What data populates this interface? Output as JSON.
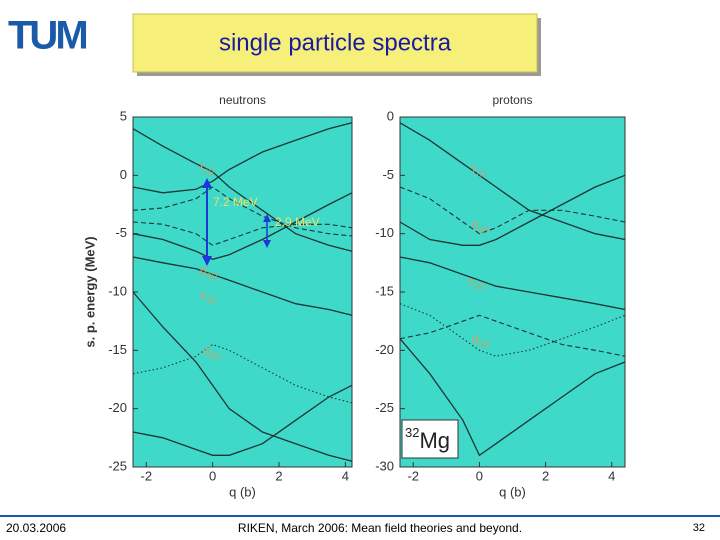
{
  "header": {
    "logo": "TUM",
    "title": "single particle spectra"
  },
  "footer": {
    "date": "20.03.2006",
    "text": "RIKEN, March 2006: Mean field theories and beyond.",
    "page": "32"
  },
  "chart_data": [
    {
      "type": "line",
      "title": "neutrons",
      "ylabel": "s. p. energy (MeV)",
      "xlabel": "q (b)",
      "xlim": [
        -2.4,
        4.2
      ],
      "xticks": [
        -2,
        0,
        2,
        4
      ],
      "ylim": [
        -25,
        5
      ],
      "yticks": [
        5,
        0,
        -5,
        -10,
        -15,
        -20,
        -25
      ],
      "background": "#3fd9c9",
      "color": "#1d3535",
      "x": [
        -2.4,
        -1.5,
        -0.5,
        0,
        0.5,
        1.5,
        2.5,
        3.5,
        4.2
      ],
      "series": [
        {
          "style": "solid",
          "values": [
            4,
            2.5,
            1,
            0.3,
            -1,
            -3,
            -5,
            -6,
            -6.5
          ]
        },
        {
          "style": "solid",
          "values": [
            -5,
            -5.5,
            -6.5,
            -7.2,
            -6.8,
            -5.5,
            -4,
            -2.5,
            -1.5
          ]
        },
        {
          "style": "solid",
          "values": [
            -1,
            -1.5,
            -1.2,
            -0.5,
            0.5,
            2,
            3,
            4,
            4.5
          ]
        },
        {
          "style": "dashed",
          "values": [
            -3,
            -2.8,
            -2,
            -1,
            -2,
            -3.5,
            -4.5,
            -5,
            -5.2
          ]
        },
        {
          "style": "dashed",
          "values": [
            -4,
            -4.2,
            -5,
            -6,
            -5.5,
            -4.5,
            -4.2,
            -4.2,
            -4.5
          ]
        },
        {
          "style": "solid",
          "values": [
            -7,
            -7.5,
            -8,
            -8.5,
            -9,
            -10,
            -11,
            -11.5,
            -12
          ]
        },
        {
          "style": "dotted",
          "values": [
            -17,
            -16.5,
            -15.5,
            -14.5,
            -15,
            -16.5,
            -18,
            -19,
            -19.5
          ]
        },
        {
          "style": "solid",
          "values": [
            -10,
            -13,
            -16,
            -18,
            -20,
            -22,
            -23,
            -24,
            -24.5
          ]
        },
        {
          "style": "solid",
          "values": [
            -22,
            -22.5,
            -23.5,
            -24,
            -24,
            -23,
            -21,
            -19,
            -18
          ]
        }
      ],
      "annotations": [
        {
          "text": "f",
          "sub": "7/2"
        },
        {
          "text": "d",
          "sub": "3/2"
        },
        {
          "text": "s",
          "sub": "1/2"
        },
        {
          "text": "d",
          "sub": "5/2"
        },
        {
          "text": "7.2 MeV"
        },
        {
          "text": "2.9 MeV"
        }
      ]
    },
    {
      "type": "line",
      "title": "protons",
      "xlabel": "q (b)",
      "xlim": [
        -2.4,
        4.4
      ],
      "xticks": [
        -2,
        0,
        2,
        4
      ],
      "ylim": [
        -30,
        0
      ],
      "yticks": [
        0,
        -5,
        -10,
        -15,
        -20,
        -25,
        -30
      ],
      "background": "#3fd9c9",
      "color": "#1d3535",
      "x": [
        -2.4,
        -1.5,
        -0.5,
        0,
        0.5,
        1.5,
        2.5,
        3.5,
        4.4
      ],
      "series": [
        {
          "style": "solid",
          "values": [
            -0.5,
            -2,
            -4,
            -5,
            -6,
            -8,
            -9,
            -10,
            -10.5
          ]
        },
        {
          "style": "solid",
          "values": [
            -9,
            -10.5,
            -11,
            -11,
            -10.5,
            -9,
            -7.5,
            -6,
            -5
          ]
        },
        {
          "style": "dashed",
          "values": [
            -6,
            -7,
            -9,
            -10,
            -9.5,
            -8,
            -8,
            -8.5,
            -9
          ]
        },
        {
          "style": "solid",
          "values": [
            -12,
            -12.5,
            -13.5,
            -14,
            -14.5,
            -15,
            -15.5,
            -16,
            -16.5
          ]
        },
        {
          "style": "dashed",
          "values": [
            -19,
            -18.5,
            -17.5,
            -17,
            -17.5,
            -18.5,
            -19.5,
            -20,
            -20.5
          ]
        },
        {
          "style": "dotted",
          "values": [
            -16,
            -17,
            -19,
            -20,
            -20.5,
            -20,
            -19,
            -18,
            -17
          ]
        },
        {
          "style": "solid",
          "values": [
            -19,
            -22,
            -26,
            -29,
            -28,
            -26,
            -24,
            -22,
            -21
          ]
        }
      ],
      "annotations": [
        {
          "text": "f",
          "sub": "7/2"
        },
        {
          "text": "d",
          "sub": "3/2"
        },
        {
          "text": "s",
          "sub": "1/2"
        },
        {
          "text": "d",
          "sub": "5/2"
        }
      ],
      "nucleus": {
        "mass": "32",
        "symbol": "Mg"
      }
    }
  ]
}
